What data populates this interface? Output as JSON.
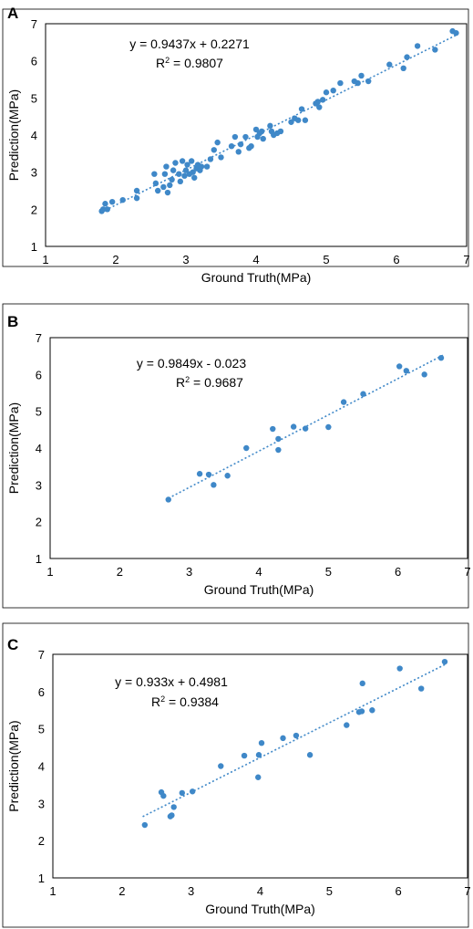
{
  "figure": {
    "colors": {
      "point": "#3f88c8",
      "trendline": "#3f88c8",
      "axis": "#000000"
    }
  },
  "chart_data": [
    {
      "panel": "A",
      "type": "scatter",
      "xlabel": "Ground Truth(MPa)",
      "ylabel": "Prediction(MPa)",
      "xlim": [
        1,
        7
      ],
      "ylim": [
        1,
        7
      ],
      "xticks": [
        "1",
        "2",
        "3",
        "4",
        "5",
        "6",
        "7"
      ],
      "yticks": [
        "1",
        "2",
        "3",
        "4",
        "5",
        "6",
        "7"
      ],
      "grid": false,
      "equation": "y = 0.9437x + 0.2271",
      "r2": "0.9807",
      "trendline": {
        "slope": 0.9437,
        "intercept": 0.2271,
        "x_range": [
          1.8,
          6.85
        ]
      },
      "points": [
        [
          1.8,
          1.95
        ],
        [
          1.82,
          2.0
        ],
        [
          1.85,
          2.15
        ],
        [
          1.88,
          2.0
        ],
        [
          1.95,
          2.2
        ],
        [
          2.1,
          2.25
        ],
        [
          2.3,
          2.3
        ],
        [
          2.3,
          2.5
        ],
        [
          2.55,
          2.95
        ],
        [
          2.57,
          2.7
        ],
        [
          2.6,
          2.5
        ],
        [
          2.68,
          2.6
        ],
        [
          2.7,
          2.95
        ],
        [
          2.72,
          3.15
        ],
        [
          2.74,
          2.45
        ],
        [
          2.77,
          2.65
        ],
        [
          2.8,
          2.8
        ],
        [
          2.82,
          3.05
        ],
        [
          2.85,
          3.25
        ],
        [
          2.9,
          2.95
        ],
        [
          2.92,
          2.75
        ],
        [
          2.95,
          3.3
        ],
        [
          2.98,
          2.9
        ],
        [
          3.0,
          3.05
        ],
        [
          3.02,
          3.2
        ],
        [
          3.05,
          2.95
        ],
        [
          3.08,
          3.3
        ],
        [
          3.1,
          3.0
        ],
        [
          3.12,
          2.85
        ],
        [
          3.15,
          3.1
        ],
        [
          3.17,
          3.2
        ],
        [
          3.2,
          3.05
        ],
        [
          3.22,
          3.15
        ],
        [
          3.3,
          3.15
        ],
        [
          3.35,
          3.35
        ],
        [
          3.4,
          3.6
        ],
        [
          3.45,
          3.8
        ],
        [
          3.5,
          3.4
        ],
        [
          3.65,
          3.7
        ],
        [
          3.7,
          3.95
        ],
        [
          3.75,
          3.55
        ],
        [
          3.78,
          3.75
        ],
        [
          3.85,
          3.95
        ],
        [
          3.9,
          3.65
        ],
        [
          3.93,
          3.7
        ],
        [
          4.0,
          4.15
        ],
        [
          4.02,
          3.95
        ],
        [
          4.05,
          4.05
        ],
        [
          4.08,
          4.1
        ],
        [
          4.1,
          3.9
        ],
        [
          4.2,
          4.25
        ],
        [
          4.22,
          4.1
        ],
        [
          4.25,
          4.0
        ],
        [
          4.3,
          4.05
        ],
        [
          4.35,
          4.1
        ],
        [
          4.5,
          4.35
        ],
        [
          4.55,
          4.45
        ],
        [
          4.6,
          4.4
        ],
        [
          4.65,
          4.7
        ],
        [
          4.7,
          4.4
        ],
        [
          4.85,
          4.85
        ],
        [
          4.88,
          4.9
        ],
        [
          4.9,
          4.75
        ],
        [
          4.95,
          4.95
        ],
        [
          5.0,
          5.15
        ],
        [
          5.1,
          5.2
        ],
        [
          5.2,
          5.4
        ],
        [
          5.4,
          5.45
        ],
        [
          5.45,
          5.4
        ],
        [
          5.5,
          5.6
        ],
        [
          5.6,
          5.45
        ],
        [
          5.9,
          5.9
        ],
        [
          6.1,
          5.8
        ],
        [
          6.15,
          6.1
        ],
        [
          6.3,
          6.4
        ],
        [
          6.55,
          6.3
        ],
        [
          6.8,
          6.8
        ],
        [
          6.85,
          6.75
        ]
      ]
    },
    {
      "panel": "B",
      "type": "scatter",
      "xlabel": "Ground Truth(MPa)",
      "ylabel": "Prediction(MPa)",
      "xlim": [
        1,
        7
      ],
      "ylim": [
        1,
        7
      ],
      "xticks": [
        "1",
        "2",
        "3",
        "4",
        "5",
        "6",
        "7"
      ],
      "yticks": [
        "1",
        "2",
        "3",
        "4",
        "5",
        "6",
        "7"
      ],
      "grid": false,
      "equation": "y = 0.9849x - 0.023",
      "r2": "0.9687",
      "trendline": {
        "slope": 0.9849,
        "intercept": -0.023,
        "x_range": [
          2.7,
          6.65
        ]
      },
      "points": [
        [
          2.7,
          2.6
        ],
        [
          3.15,
          3.3
        ],
        [
          3.28,
          3.28
        ],
        [
          3.35,
          3.0
        ],
        [
          3.55,
          3.25
        ],
        [
          3.82,
          4.0
        ],
        [
          4.2,
          4.52
        ],
        [
          4.28,
          4.25
        ],
        [
          4.28,
          3.95
        ],
        [
          4.5,
          4.58
        ],
        [
          4.67,
          4.53
        ],
        [
          5.0,
          4.57
        ],
        [
          5.22,
          5.25
        ],
        [
          5.5,
          5.47
        ],
        [
          6.02,
          6.22
        ],
        [
          6.12,
          6.1
        ],
        [
          6.38,
          6.0
        ],
        [
          6.62,
          6.45
        ]
      ]
    },
    {
      "panel": "C",
      "type": "scatter",
      "xlabel": "Ground Truth(MPa)",
      "ylabel": "Prediction(MPa)",
      "xlim": [
        1,
        7
      ],
      "ylim": [
        1,
        7
      ],
      "xticks": [
        "1",
        "2",
        "3",
        "4",
        "5",
        "6",
        "7"
      ],
      "yticks": [
        "1",
        "2",
        "3",
        "4",
        "5",
        "6",
        "7"
      ],
      "grid": false,
      "equation": "y = 0.933x + 0.4981",
      "r2": "0.9384",
      "trendline": {
        "slope": 0.933,
        "intercept": 0.4981,
        "x_range": [
          2.3,
          6.7
        ]
      },
      "points": [
        [
          2.33,
          2.42
        ],
        [
          2.57,
          3.3
        ],
        [
          2.6,
          3.2
        ],
        [
          2.7,
          2.65
        ],
        [
          2.72,
          2.68
        ],
        [
          2.75,
          2.9
        ],
        [
          2.87,
          3.28
        ],
        [
          3.02,
          3.32
        ],
        [
          3.43,
          4.0
        ],
        [
          3.77,
          4.28
        ],
        [
          3.97,
          3.7
        ],
        [
          3.98,
          4.3
        ],
        [
          4.02,
          4.62
        ],
        [
          4.33,
          4.75
        ],
        [
          4.52,
          4.82
        ],
        [
          4.72,
          4.3
        ],
        [
          5.25,
          5.1
        ],
        [
          5.43,
          5.45
        ],
        [
          5.47,
          5.47
        ],
        [
          5.48,
          6.22
        ],
        [
          5.62,
          5.5
        ],
        [
          6.02,
          6.62
        ],
        [
          6.33,
          6.08
        ],
        [
          6.67,
          6.8
        ]
      ]
    }
  ]
}
